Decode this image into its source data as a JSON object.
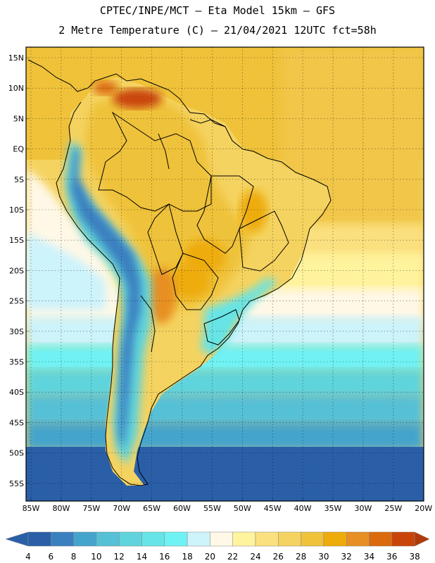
{
  "header": {
    "line1": "CPTEC/INPE/MCT –  Eta Model 15km – GFS",
    "line2": "2 Metre Temperature (C) – 21/04/2021 12UTC fct=58h"
  },
  "map": {
    "lat_labels": [
      "15N",
      "10N",
      "5N",
      "EQ",
      "5S",
      "10S",
      "15S",
      "20S",
      "25S",
      "30S",
      "35S",
      "40S",
      "45S",
      "50S",
      "55S"
    ],
    "lon_labels": [
      "85W",
      "80W",
      "75W",
      "70W",
      "65W",
      "60W",
      "55W",
      "50W",
      "45W",
      "40W",
      "35W",
      "30W",
      "25W",
      "20W"
    ]
  },
  "colorbar": {
    "labels": [
      "4",
      "6",
      "8",
      "10",
      "12",
      "14",
      "16",
      "18",
      "20",
      "22",
      "24",
      "26",
      "28",
      "30",
      "32",
      "34",
      "36",
      "38"
    ],
    "colors": [
      "#2a5fa8",
      "#3a80c0",
      "#45a4cc",
      "#56c0d6",
      "#5fd4dc",
      "#66e4e6",
      "#6ff2f4",
      "#cdf3fb",
      "#fff8e6",
      "#fff39d",
      "#fbe07f",
      "#f5d360",
      "#efc23a",
      "#eeac0b",
      "#e78f22",
      "#db6a0c",
      "#c94409",
      "#b03a0a"
    ]
  }
}
